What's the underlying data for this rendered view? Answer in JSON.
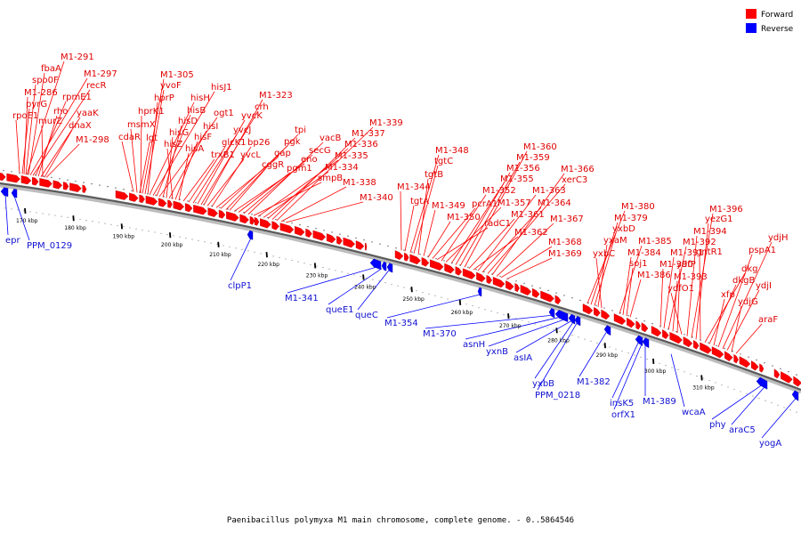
{
  "legend": {
    "forward_label": "Forward",
    "reverse_label": "Reverse",
    "forward_color": "#ff0000",
    "reverse_color": "#0000ff"
  },
  "caption": "Paenibacillus polymyxa M1 main chromosome, complete genome. - 0..5864546",
  "scale_ticks": [
    "170 kbp",
    "180 kbp",
    "190 kbp",
    "200 kbp",
    "210 kbp",
    "220 kbp",
    "230 kbp",
    "240 kbp",
    "250 kbp",
    "260 kbp",
    "270 kbp",
    "280 kbp",
    "290 kbp",
    "300 kbp",
    "310 kbp"
  ],
  "forward_genes": [
    "M1-291",
    "fbaA",
    "M1-297",
    "spo0F",
    "recR",
    "M1-286",
    "rpmE1",
    "pyrG",
    "rho",
    "yaaK",
    "rpoE1",
    "murZ",
    "dnaX",
    "M1-298",
    "M1-305",
    "yvoF",
    "hprP",
    "hisH",
    "hisJ1",
    "hprK1",
    "hisB",
    "msmX",
    "ogt1",
    "hisD",
    "cdaR",
    "lgt",
    "hisG",
    "hisI",
    "hisZ",
    "hisF",
    "hisA",
    "trxB1",
    "glcK1",
    "yvcJ",
    "yvcK",
    "crh",
    "M1-323",
    "yvcL",
    "bp26",
    "gap",
    "pgk",
    "tpi",
    "cggR",
    "eno",
    "pgm1",
    "secG",
    "vacB",
    "smpB",
    "M1-335",
    "M1-334",
    "M1-336",
    "M1-337",
    "M1-339",
    "M1-338",
    "M1-340",
    "M1-344",
    "tgtA",
    "M1-348",
    "tgtC",
    "tgtB",
    "M1-349",
    "M1-350",
    "pcrA1",
    "radC1",
    "M1-352",
    "M1-357",
    "M1-355",
    "M1-356",
    "M1-359",
    "M1-360",
    "M1-361",
    "M1-362",
    "M1-363",
    "M1-364",
    "xerC3",
    "M1-366",
    "M1-367",
    "M1-368",
    "M1-369",
    "M1-380",
    "M1-379",
    "yxbD",
    "yxaM",
    "yxbC",
    "M1-385",
    "M1-384",
    "soj1",
    "M1-386",
    "M1-390",
    "M1-391",
    "M1-392",
    "M1-393",
    "ydfP",
    "ydfO1",
    "M1-394",
    "M1-396",
    "yezG1",
    "gntR1",
    "dkg",
    "dkgB",
    "xfp",
    "pspA1",
    "ydjH",
    "ydjI",
    "ydjG",
    "araF"
  ],
  "reverse_genes": [
    "epr",
    "PPM_0129",
    "clpP1",
    "M1-341",
    "queE1",
    "queC",
    "M1-354",
    "M1-370",
    "asnH",
    "yxnB",
    "asIA",
    "yxbB",
    "PPM_0218",
    "M1-382",
    "insK5",
    "orfX1",
    "M1-389",
    "wcaA",
    "phy",
    "araC5",
    "yogA"
  ]
}
